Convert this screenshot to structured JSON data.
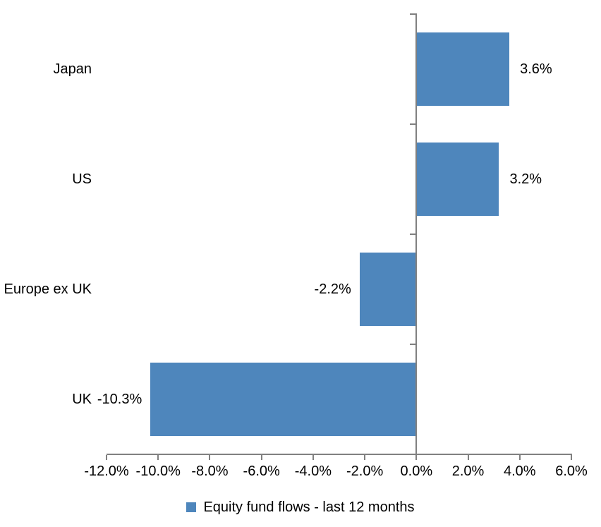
{
  "chart_data": {
    "type": "bar",
    "orientation": "horizontal",
    "title": "",
    "categories": [
      "Japan",
      "US",
      "Europe ex UK",
      "UK"
    ],
    "series": [
      {
        "name": "Equity fund flows - last 12 months",
        "values": [
          3.6,
          3.2,
          -2.2,
          -10.3
        ]
      }
    ],
    "value_labels": [
      "3.6%",
      "3.2%",
      "-2.2%",
      "-10.3%"
    ],
    "x_axis": {
      "min": -12,
      "max": 6,
      "tick_step": 2,
      "tick_values": [
        -12,
        -10,
        -8,
        -6,
        -4,
        -2,
        0,
        2,
        4,
        6
      ],
      "tick_labels": [
        "-12.0%",
        "-10.0%",
        "-8.0%",
        "-6.0%",
        "-4.0%",
        "-2.0%",
        "0.0%",
        "2.0%",
        "4.0%",
        "6.0%"
      ]
    },
    "grid": false,
    "legend": {
      "position": "bottom",
      "label": "Equity fund flows - last 12 months"
    },
    "colors": {
      "bar": "#4E86BC",
      "axis": "#808080",
      "text": "#000000",
      "background": "#FFFFFF"
    }
  }
}
